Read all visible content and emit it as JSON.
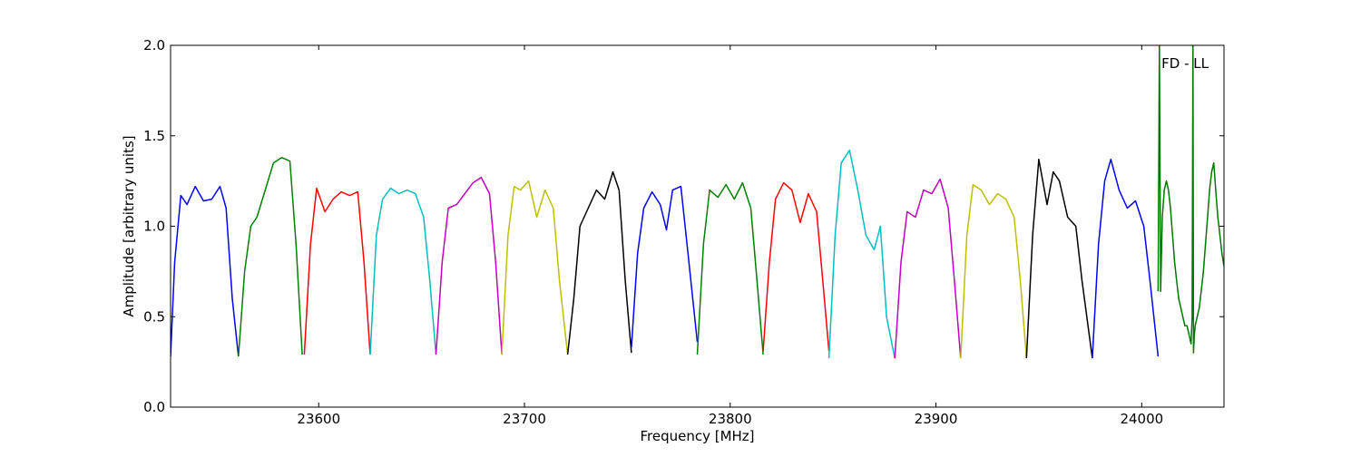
{
  "chart_data": {
    "type": "line",
    "annotation": "FD - LL",
    "xlabel": "Frequency [MHz]",
    "ylabel": "Amplitude [arbitrary units]",
    "xlim": [
      23528,
      24040
    ],
    "ylim": [
      0.0,
      2.0
    ],
    "xticks": [
      23600,
      23700,
      23800,
      23900,
      24000
    ],
    "xtick_labels": [
      "23600",
      "23700",
      "23800",
      "23900",
      "24000"
    ],
    "yticks": [
      0.0,
      0.5,
      1.0,
      1.5,
      2.0
    ],
    "ytick_labels": [
      "0.0",
      "0.5",
      "1.0",
      "1.5",
      "2.0"
    ],
    "grid": false,
    "series": [
      {
        "color": "#0000ff",
        "x": [
          23528,
          23530,
          23533,
          23536,
          23540,
          23544,
          23548,
          23552,
          23555,
          23558,
          23561
        ],
        "y": [
          0.28,
          0.8,
          1.17,
          1.12,
          1.22,
          1.14,
          1.15,
          1.22,
          1.1,
          0.6,
          0.28
        ]
      },
      {
        "color": "#008000",
        "x": [
          23561,
          23564,
          23567,
          23570,
          23574,
          23578,
          23582,
          23586,
          23589,
          23592
        ],
        "y": [
          0.28,
          0.75,
          1.0,
          1.05,
          1.2,
          1.35,
          1.38,
          1.36,
          0.9,
          0.29
        ]
      },
      {
        "color": "#ff0000",
        "x": [
          23593,
          23596,
          23599,
          23603,
          23607,
          23611,
          23615,
          23619,
          23622,
          23625
        ],
        "y": [
          0.29,
          0.9,
          1.21,
          1.08,
          1.15,
          1.19,
          1.17,
          1.19,
          0.8,
          0.29
        ]
      },
      {
        "color": "#00bfbf",
        "x": [
          23625,
          23628,
          23631,
          23635,
          23639,
          23643,
          23647,
          23651,
          23654,
          23657
        ],
        "y": [
          0.29,
          0.95,
          1.15,
          1.21,
          1.18,
          1.2,
          1.18,
          1.05,
          0.7,
          0.29
        ]
      },
      {
        "color": "#bf00bf",
        "x": [
          23657,
          23660,
          23663,
          23667,
          23671,
          23675,
          23679,
          23683,
          23686,
          23689
        ],
        "y": [
          0.29,
          0.8,
          1.1,
          1.12,
          1.18,
          1.24,
          1.27,
          1.18,
          0.8,
          0.29
        ]
      },
      {
        "color": "#bfbf00",
        "x": [
          23689,
          23692,
          23695,
          23698,
          23702,
          23706,
          23710,
          23714,
          23717,
          23721
        ],
        "y": [
          0.29,
          0.95,
          1.22,
          1.2,
          1.25,
          1.05,
          1.2,
          1.1,
          0.7,
          0.29
        ]
      },
      {
        "color": "#000000",
        "x": [
          23721,
          23724,
          23727,
          23731,
          23735,
          23739,
          23743,
          23746,
          23749,
          23752
        ],
        "y": [
          0.29,
          0.6,
          1.0,
          1.1,
          1.2,
          1.15,
          1.3,
          1.2,
          0.7,
          0.3
        ]
      },
      {
        "color": "#0000ff",
        "x": [
          23752,
          23755,
          23758,
          23762,
          23766,
          23769,
          23772,
          23776,
          23779,
          23784
        ],
        "y": [
          0.33,
          0.85,
          1.1,
          1.19,
          1.12,
          0.98,
          1.2,
          1.22,
          0.9,
          0.36
        ]
      },
      {
        "color": "#008000",
        "x": [
          23784,
          23787,
          23790,
          23794,
          23798,
          23802,
          23806,
          23810,
          23813,
          23816
        ],
        "y": [
          0.29,
          0.9,
          1.2,
          1.16,
          1.23,
          1.15,
          1.24,
          1.1,
          0.7,
          0.29
        ]
      },
      {
        "color": "#ff0000",
        "x": [
          23816,
          23819,
          23822,
          23826,
          23830,
          23834,
          23838,
          23842,
          23845,
          23848
        ],
        "y": [
          0.31,
          0.8,
          1.15,
          1.24,
          1.2,
          1.02,
          1.18,
          1.08,
          0.7,
          0.31
        ]
      },
      {
        "color": "#00bfbf",
        "x": [
          23848,
          23851,
          23854,
          23858,
          23862,
          23866,
          23870,
          23873,
          23876,
          23880
        ],
        "y": [
          0.27,
          0.95,
          1.35,
          1.42,
          1.2,
          0.95,
          0.87,
          1.0,
          0.5,
          0.27
        ]
      },
      {
        "color": "#bf00bf",
        "x": [
          23880,
          23883,
          23886,
          23890,
          23894,
          23898,
          23902,
          23906,
          23909,
          23912
        ],
        "y": [
          0.27,
          0.8,
          1.08,
          1.05,
          1.2,
          1.18,
          1.26,
          1.1,
          0.7,
          0.27
        ]
      },
      {
        "color": "#bfbf00",
        "x": [
          23912,
          23915,
          23918,
          23922,
          23926,
          23930,
          23934,
          23938,
          23941,
          23944
        ],
        "y": [
          0.27,
          0.95,
          1.23,
          1.2,
          1.12,
          1.18,
          1.15,
          1.05,
          0.7,
          0.27
        ]
      },
      {
        "color": "#000000",
        "x": [
          23944,
          23947,
          23950,
          23954,
          23957,
          23960,
          23964,
          23968,
          23971,
          23976
        ],
        "y": [
          0.27,
          0.95,
          1.37,
          1.12,
          1.3,
          1.25,
          1.05,
          1.0,
          0.7,
          0.27
        ]
      },
      {
        "color": "#0000ff",
        "x": [
          23976,
          23979,
          23982,
          23985,
          23989,
          23993,
          23997,
          24001,
          24004,
          24008
        ],
        "y": [
          0.27,
          0.9,
          1.25,
          1.37,
          1.2,
          1.1,
          1.14,
          1.0,
          0.7,
          0.28
        ]
      },
      {
        "color": "#007700",
        "x": [
          24008,
          24008.6,
          24009.2,
          24010,
          24011,
          24012,
          24013,
          24014,
          24015,
          24016,
          24017,
          24018,
          24019,
          24020,
          24021,
          24022,
          24023,
          24024,
          24024.5,
          24024.9,
          24025.2,
          24025.6,
          24026,
          24027,
          24028,
          24029,
          24030,
          24031,
          24032,
          24033,
          24034,
          24035,
          24036,
          24037,
          24038,
          24039,
          24040
        ],
        "y": [
          0.64,
          2.0,
          0.64,
          1.05,
          1.2,
          1.25,
          1.2,
          1.1,
          0.95,
          0.8,
          0.7,
          0.6,
          0.55,
          0.5,
          0.45,
          0.45,
          0.4,
          0.35,
          0.5,
          2.0,
          0.3,
          0.4,
          0.45,
          0.5,
          0.55,
          0.65,
          0.75,
          0.9,
          1.05,
          1.2,
          1.3,
          1.35,
          1.2,
          1.05,
          0.95,
          0.85,
          0.78
        ]
      }
    ]
  }
}
